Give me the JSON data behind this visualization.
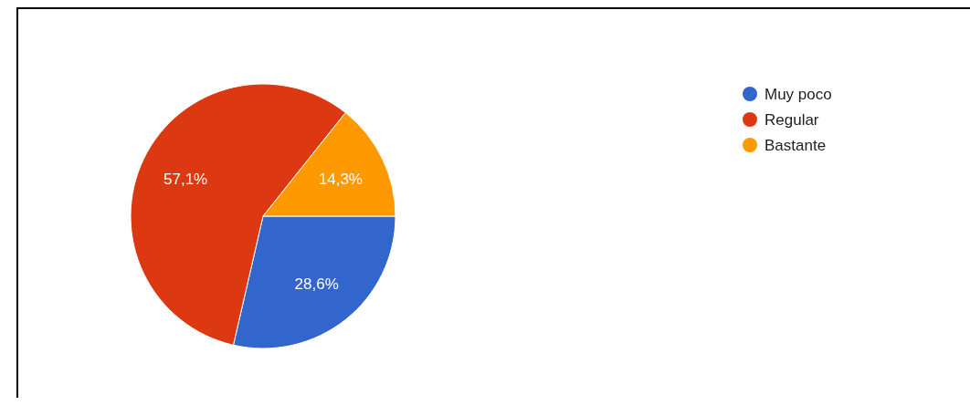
{
  "chart_data": {
    "type": "pie",
    "categories": [
      "Muy poco",
      "Regular",
      "Bastante"
    ],
    "values": [
      28.6,
      57.1,
      14.3
    ],
    "colors": [
      "#3366cc",
      "#dc3912",
      "#ff9900"
    ],
    "value_labels": [
      "28,6%",
      "57,1%",
      "14,3%"
    ],
    "legend": "top right"
  }
}
